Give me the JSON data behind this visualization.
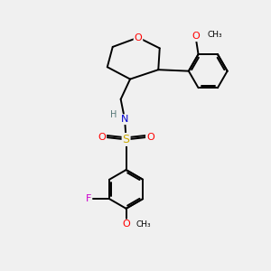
{
  "background_color": "#f0f0f0",
  "bond_color": "#000000",
  "atom_colors": {
    "O": "#ff0000",
    "N": "#0000cd",
    "S": "#ccaa00",
    "F": "#cc00cc",
    "H": "#557777",
    "C": "#000000"
  },
  "figsize": [
    3.0,
    3.0
  ],
  "dpi": 100
}
